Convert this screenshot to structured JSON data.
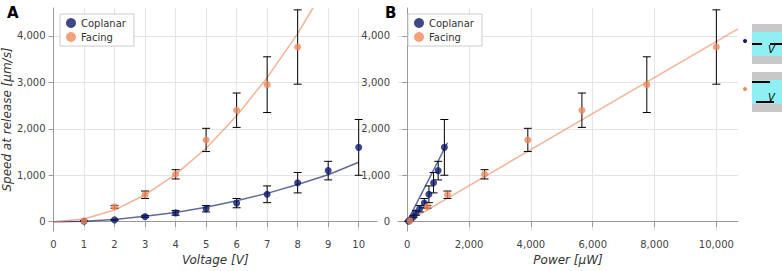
{
  "chart_data": [
    {
      "type": "scatter",
      "title": "A",
      "x_label": "Voltage [V]",
      "y_label": "Speed at release [μm/s]",
      "xlim": [
        0,
        10.6
      ],
      "xticks": [
        0,
        1,
        2,
        3,
        4,
        5,
        6,
        7,
        8,
        9,
        10
      ],
      "ylim": [
        -200,
        4600
      ],
      "yticks": [
        0,
        1000,
        2000,
        3000,
        4000
      ],
      "grid": true,
      "legend": "top-left",
      "marker": "circle",
      "series": [
        {
          "name": "Coplanar",
          "color": "#0d1a6b",
          "x": [
            1,
            2,
            3,
            4,
            5,
            6,
            7,
            8,
            9,
            10
          ],
          "values": [
            10,
            40,
            110,
            190,
            280,
            400,
            590,
            840,
            1100,
            1600
          ],
          "error": [
            5,
            10,
            20,
            50,
            70,
            100,
            180,
            220,
            200,
            600
          ],
          "fit": {
            "x": [
              0,
              1,
              2,
              3,
              4,
              5,
              6,
              7,
              8,
              9,
              10
            ],
            "values": [
              0,
              12,
              50,
              115,
              200,
              310,
              450,
              610,
              800,
              1010,
              1280
            ]
          }
        },
        {
          "name": "Facing",
          "color": "#f08a5d",
          "x": [
            1,
            2,
            3,
            4,
            5,
            6,
            7,
            8
          ],
          "values": [
            20,
            320,
            580,
            1020,
            1760,
            2400,
            2950,
            3760
          ],
          "error": [
            5,
            30,
            80,
            100,
            250,
            370,
            600,
            800
          ],
          "fit": {
            "x": [
              0,
              1,
              2,
              3,
              4,
              5,
              6,
              7,
              8,
              8.5
            ],
            "values": [
              0,
              60,
              250,
              580,
              1020,
              1580,
              2280,
              3100,
              4050,
              4600
            ]
          }
        }
      ]
    },
    {
      "type": "scatter",
      "title": "B",
      "x_label": "Power [μW]",
      "xlim": [
        -300,
        10700
      ],
      "xticks": [
        0,
        2000,
        4000,
        6000,
        8000,
        10000
      ],
      "ylim": [
        -200,
        4600
      ],
      "yticks": [
        0,
        1000,
        2000,
        3000,
        4000
      ],
      "grid": true,
      "legend": "top-left",
      "marker": "circle",
      "annotations": [
        "V",
        "V"
      ],
      "series": [
        {
          "name": "Coplanar",
          "color": "#0d1a6b",
          "x": [
            40,
            90,
            200,
            280,
            400,
            550,
            700,
            850,
            1000,
            1200
          ],
          "values": [
            10,
            40,
            110,
            190,
            280,
            400,
            590,
            840,
            1100,
            1600
          ],
          "error": [
            5,
            10,
            20,
            50,
            70,
            100,
            180,
            220,
            200,
            600
          ],
          "fit": {
            "x": [
              0,
              1300
            ],
            "values": [
              0,
              1700
            ]
          }
        },
        {
          "name": "Facing",
          "color": "#f08a5d",
          "x": [
            90,
            650,
            1300,
            2500,
            3900,
            5650,
            7750,
            10000
          ],
          "values": [
            20,
            320,
            580,
            1020,
            1760,
            2400,
            2950,
            3760
          ],
          "error": [
            5,
            30,
            80,
            100,
            250,
            370,
            600,
            800
          ],
          "fit": {
            "x": [
              0,
              10700
            ],
            "values": [
              0,
              4150
            ]
          }
        }
      ]
    }
  ]
}
